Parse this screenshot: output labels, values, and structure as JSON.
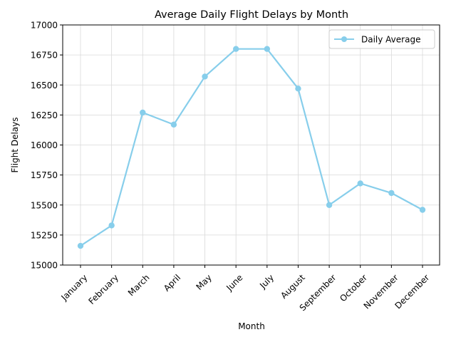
{
  "chart_data": {
    "type": "line",
    "title": "Average Daily Flight Delays by Month",
    "xlabel": "Month",
    "ylabel": "Flight Delays",
    "categories": [
      "January",
      "February",
      "March",
      "April",
      "May",
      "June",
      "July",
      "August",
      "September",
      "October",
      "November",
      "December"
    ],
    "series": [
      {
        "name": "Daily Average",
        "color": "#87CEEB",
        "values": [
          15160,
          15330,
          16270,
          16170,
          16570,
          16800,
          16800,
          16470,
          15500,
          15680,
          15600,
          15460
        ]
      }
    ],
    "ylim": [
      15000,
      17000
    ],
    "yticks": [
      15000,
      15250,
      15500,
      15750,
      16000,
      16250,
      16500,
      16750,
      17000
    ],
    "grid": true,
    "legend_position": "top-right"
  }
}
